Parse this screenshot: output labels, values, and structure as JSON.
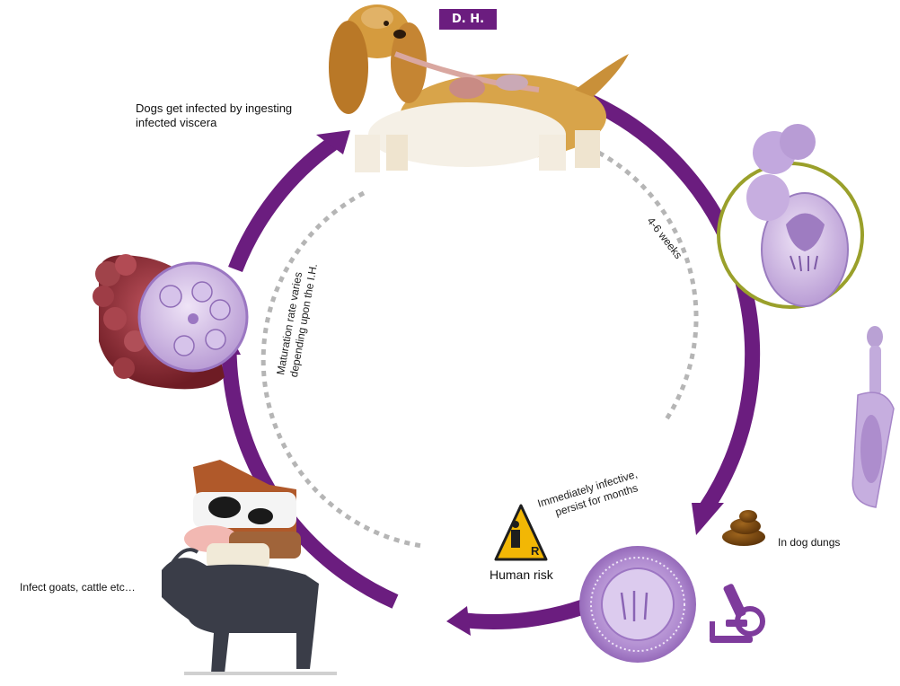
{
  "header_badge": "D. H.",
  "labels": {
    "dogs_infected": [
      "Dogs get infected by ingesting",
      "infected viscera"
    ],
    "weeks": "4-6 weeks",
    "maturation": [
      "Maturation rate varies",
      "depending upon the I.H."
    ],
    "immediately": [
      "Immediately infective,",
      "persist for months"
    ],
    "human_risk": "Human risk",
    "risk_sign_letter": "R",
    "dog_dungs": "In dog dungs",
    "infect_goats": "Infect goats, cattle etc…"
  },
  "colors": {
    "cycle_arrow": "#6b1d7f",
    "badge": "#6b1d7f",
    "dotted_ring": "#b5b5b5",
    "parasite": "#b9a1d4",
    "cyst_tissue": "#8a2a2f",
    "warning_sign": "#f2b705",
    "adult_ring": "#9aa02b"
  },
  "icons": [
    "dog-illustration",
    "protoscolex-icon",
    "adult-worm-icon",
    "dung-icon",
    "egg-icon",
    "microscope-icon",
    "hydatid-cyst-icon",
    "livestock-illustration",
    "warning-sign-icon"
  ]
}
